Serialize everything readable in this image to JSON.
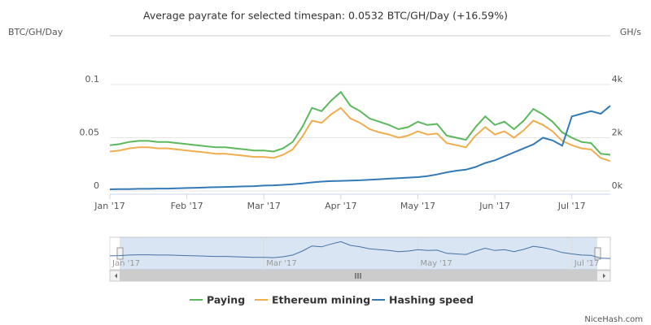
{
  "chart_data": {
    "type": "line",
    "title": "Average payrate for selected timespan: 0.0532 BTC/GH/Day (+16.59%)",
    "y_label": "BTC/GH/Day",
    "y2_label": "GH/s",
    "credits": "NiceHash.com",
    "x": [
      0,
      0.125,
      0.25,
      0.375,
      0.5,
      0.625,
      0.75,
      0.875,
      1,
      1.125,
      1.25,
      1.375,
      1.5,
      1.625,
      1.75,
      1.875,
      2,
      2.125,
      2.25,
      2.375,
      2.5,
      2.625,
      2.75,
      2.875,
      3,
      3.125,
      3.25,
      3.375,
      3.5,
      3.625,
      3.75,
      3.875,
      4,
      4.125,
      4.25,
      4.375,
      4.5,
      4.625,
      4.75,
      4.875,
      5,
      5.125,
      5.25,
      5.375,
      5.5,
      5.625,
      5.75,
      5.875,
      6,
      6.125,
      6.25,
      6.375,
      6.5
    ],
    "xlim": [
      0,
      6.5
    ],
    "xticks": [
      {
        "value": 0,
        "label": "Jan '17"
      },
      {
        "value": 1,
        "label": "Feb '17"
      },
      {
        "value": 2,
        "label": "Mar '17"
      },
      {
        "value": 3,
        "label": "Apr '17"
      },
      {
        "value": 4,
        "label": "May '17"
      },
      {
        "value": 5,
        "label": "Jun '17"
      },
      {
        "value": 6,
        "label": "Jul '17"
      }
    ],
    "ylim": [
      0,
      0.1
    ],
    "yticks": [
      0,
      0.05,
      0.1
    ],
    "y2lim": [
      0,
      4000
    ],
    "y2ticks": [
      {
        "value": 0,
        "label": "0k"
      },
      {
        "value": 2000,
        "label": "2k"
      },
      {
        "value": 4000,
        "label": "4k"
      }
    ],
    "grid": true,
    "series": [
      {
        "name": "Paying",
        "color": "#5cb85c",
        "values": [
          0.043,
          0.044,
          0.046,
          0.047,
          0.047,
          0.046,
          0.046,
          0.045,
          0.044,
          0.043,
          0.042,
          0.041,
          0.041,
          0.04,
          0.039,
          0.038,
          0.038,
          0.037,
          0.04,
          0.046,
          0.06,
          0.078,
          0.075,
          0.085,
          0.093,
          0.08,
          0.075,
          0.068,
          0.065,
          0.062,
          0.058,
          0.06,
          0.065,
          0.062,
          0.063,
          0.052,
          0.05,
          0.048,
          0.06,
          0.07,
          0.062,
          0.065,
          0.058,
          0.066,
          0.077,
          0.072,
          0.065,
          0.055,
          0.05,
          0.046,
          0.045,
          0.035,
          0.034
        ]
      },
      {
        "name": "Ethereum mining",
        "color": "#f0ad4e",
        "values": [
          0.037,
          0.038,
          0.04,
          0.041,
          0.041,
          0.04,
          0.04,
          0.039,
          0.038,
          0.037,
          0.036,
          0.035,
          0.035,
          0.034,
          0.033,
          0.032,
          0.032,
          0.031,
          0.034,
          0.039,
          0.051,
          0.066,
          0.064,
          0.072,
          0.078,
          0.068,
          0.064,
          0.058,
          0.055,
          0.053,
          0.05,
          0.052,
          0.056,
          0.053,
          0.054,
          0.045,
          0.043,
          0.041,
          0.052,
          0.06,
          0.053,
          0.056,
          0.05,
          0.057,
          0.066,
          0.062,
          0.056,
          0.047,
          0.043,
          0.04,
          0.039,
          0.031,
          0.028
        ]
      },
      {
        "name": "Hashing speed",
        "color": "#337ab7",
        "axis": "y2",
        "values": [
          60,
          70,
          70,
          80,
          80,
          90,
          90,
          100,
          110,
          120,
          130,
          140,
          150,
          160,
          170,
          180,
          200,
          210,
          230,
          250,
          280,
          320,
          350,
          370,
          380,
          390,
          400,
          420,
          440,
          460,
          480,
          500,
          520,
          560,
          620,
          700,
          760,
          800,
          900,
          1050,
          1150,
          1300,
          1450,
          1600,
          1750,
          2000,
          1900,
          1700,
          2800,
          2900,
          3000,
          2900,
          3200
        ]
      }
    ]
  }
}
